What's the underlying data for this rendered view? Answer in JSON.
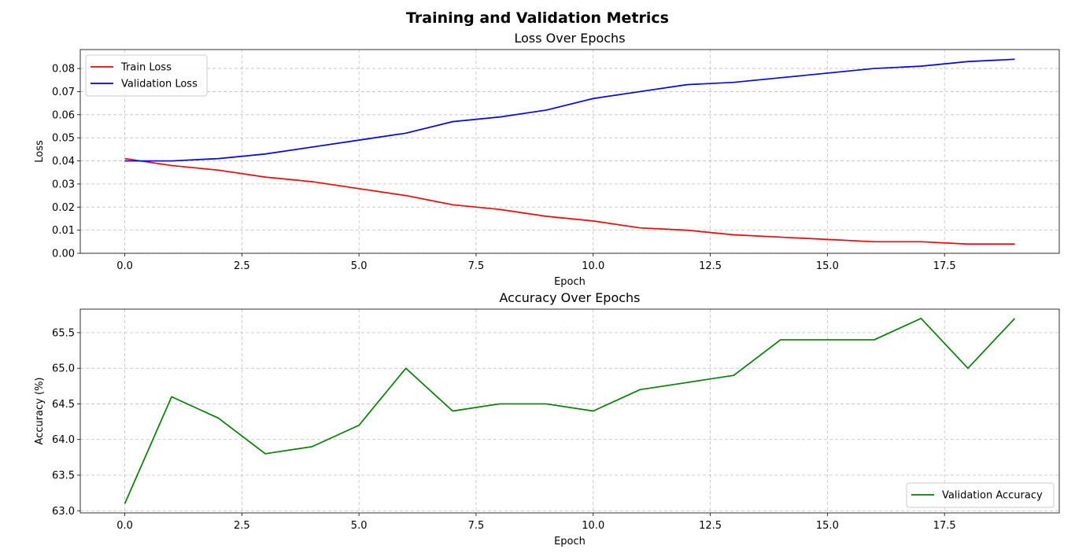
{
  "figure_title": "Training and Validation Metrics",
  "chart_data": [
    {
      "type": "line",
      "title": "Loss Over Epochs",
      "xlabel": "Epoch",
      "ylabel": "Loss",
      "xlim": [
        -0.95,
        19.95
      ],
      "ylim": [
        0,
        0.0882
      ],
      "xticks": [
        0.0,
        2.5,
        5.0,
        7.5,
        10.0,
        12.5,
        15.0,
        17.5
      ],
      "xtick_labels": [
        "0.0",
        "2.5",
        "5.0",
        "7.5",
        "10.0",
        "12.5",
        "15.0",
        "17.5"
      ],
      "yticks": [
        0.0,
        0.01,
        0.02,
        0.03,
        0.04,
        0.05,
        0.06,
        0.07,
        0.08
      ],
      "ytick_labels": [
        "0.00",
        "0.01",
        "0.02",
        "0.03",
        "0.04",
        "0.05",
        "0.06",
        "0.07",
        "0.08"
      ],
      "grid": true,
      "legend_position": "upper-left",
      "x": [
        0,
        1,
        2,
        3,
        4,
        5,
        6,
        7,
        8,
        9,
        10,
        11,
        12,
        13,
        14,
        15,
        16,
        17,
        18,
        19
      ],
      "series": [
        {
          "name": "Train Loss",
          "color": "#ff0000",
          "values": [
            0.041,
            0.038,
            0.036,
            0.033,
            0.031,
            0.028,
            0.025,
            0.021,
            0.019,
            0.016,
            0.014,
            0.011,
            0.01,
            0.008,
            0.007,
            0.006,
            0.005,
            0.005,
            0.004,
            0.004
          ]
        },
        {
          "name": "Validation Loss",
          "color": "#0000ff",
          "values": [
            0.04,
            0.04,
            0.041,
            0.043,
            0.046,
            0.049,
            0.052,
            0.057,
            0.059,
            0.062,
            0.067,
            0.07,
            0.073,
            0.074,
            0.076,
            0.078,
            0.08,
            0.081,
            0.083,
            0.084
          ]
        }
      ]
    },
    {
      "type": "line",
      "title": "Accuracy Over Epochs",
      "xlabel": "Epoch",
      "ylabel": "Accuracy (%)",
      "xlim": [
        -0.95,
        19.95
      ],
      "ylim": [
        62.97,
        65.83
      ],
      "xticks": [
        0.0,
        2.5,
        5.0,
        7.5,
        10.0,
        12.5,
        15.0,
        17.5
      ],
      "xtick_labels": [
        "0.0",
        "2.5",
        "5.0",
        "7.5",
        "10.0",
        "12.5",
        "15.0",
        "17.5"
      ],
      "yticks": [
        63.0,
        63.5,
        64.0,
        64.5,
        65.0,
        65.5
      ],
      "ytick_labels": [
        "63.0",
        "63.5",
        "64.0",
        "64.5",
        "65.0",
        "65.5"
      ],
      "grid": true,
      "legend_position": "lower-right",
      "x": [
        0,
        1,
        2,
        3,
        4,
        5,
        6,
        7,
        8,
        9,
        10,
        11,
        12,
        13,
        14,
        15,
        16,
        17,
        18,
        19
      ],
      "series": [
        {
          "name": "Validation Accuracy",
          "color": "#008000",
          "values": [
            63.1,
            64.6,
            64.3,
            63.8,
            63.9,
            64.2,
            65.0,
            64.4,
            64.5,
            64.5,
            64.4,
            64.7,
            64.8,
            64.9,
            65.4,
            65.4,
            65.4,
            65.7,
            65.0,
            65.7
          ]
        }
      ]
    }
  ]
}
